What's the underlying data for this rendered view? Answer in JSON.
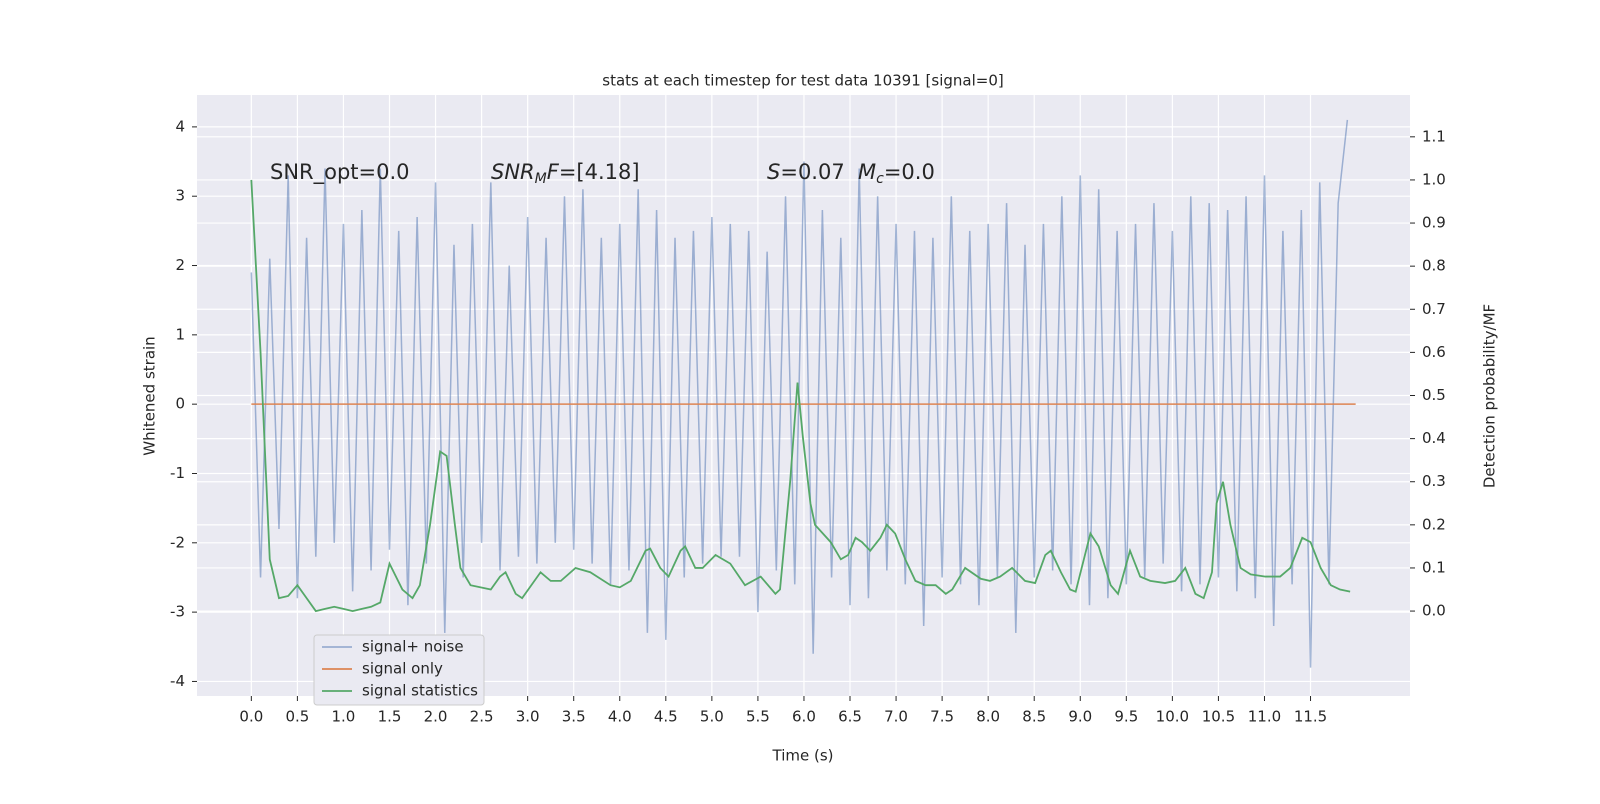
{
  "chart_data": {
    "type": "line",
    "title": "stats at each timestep for test data 10391 [signal=0]",
    "x_label": "Time (s)",
    "y_label": "Whitened strain",
    "y2_label": "Detection probability/MF",
    "xlim": [
      -0.59,
      12.58
    ],
    "ylim": [
      -4.21,
      4.46
    ],
    "y2lim": [
      -0.197,
      1.197
    ],
    "xticks": [
      {
        "value": 0,
        "label": "0.0"
      },
      0.5,
      {
        "value": 1,
        "label": "1.0"
      },
      1.5,
      {
        "value": 2,
        "label": "2.0"
      },
      2.5,
      {
        "value": 3,
        "label": "3.0"
      },
      3.5,
      {
        "value": 4,
        "label": "4.0"
      },
      4.5,
      {
        "value": 5,
        "label": "5.0"
      },
      5.5,
      {
        "value": 6,
        "label": "6.0"
      },
      6.5,
      {
        "value": 7,
        "label": "7.0"
      },
      7.5,
      {
        "value": 8,
        "label": "8.0"
      },
      8.5,
      {
        "value": 9,
        "label": "9.0"
      },
      9.5,
      {
        "value": 10,
        "label": "10.0"
      },
      10.5,
      {
        "value": 11,
        "label": "11.0"
      },
      11.5
    ],
    "yticks": [
      -4,
      -3,
      -2,
      -1,
      0,
      1,
      2,
      3,
      4
    ],
    "y2ticks": [
      {
        "value": 0,
        "label": "0.0"
      },
      0.1,
      0.2,
      0.3,
      0.4,
      0.5,
      0.6,
      0.7,
      0.8,
      0.9,
      {
        "value": 1,
        "label": "1.0"
      },
      1.1
    ],
    "grid": true,
    "background": "#eaeaf2",
    "annotations": [
      [
        [
          "SNR_opt=0.0",
          "normal"
        ]
      ],
      [
        [
          "SNR",
          "italic"
        ],
        [
          "M",
          "sub"
        ],
        [
          "F",
          "italic"
        ],
        [
          "=[4.18]",
          "normal"
        ]
      ],
      [
        [
          "S",
          "italic"
        ],
        [
          "=0.07",
          "normal"
        ]
      ],
      [
        [
          "M",
          "italic"
        ],
        [
          "c",
          "sub"
        ],
        [
          "=0.0",
          "normal"
        ]
      ]
    ],
    "series": [
      {
        "name": "signal+ noise",
        "color": "#4c72b0",
        "opacity": 0.5,
        "axis": "y",
        "x": [
          0,
          0.1,
          0.2,
          0.3,
          0.4,
          0.5,
          0.6,
          0.7,
          0.8,
          0.9,
          1,
          1.1,
          1.2,
          1.3,
          1.4,
          1.5,
          1.6,
          1.7,
          1.8,
          1.9,
          2,
          2.1,
          2.2,
          2.3,
          2.4,
          2.5,
          2.6,
          2.7,
          2.8,
          2.9,
          3,
          3.1,
          3.2,
          3.3,
          3.4,
          3.5,
          3.6,
          3.7,
          3.8,
          3.9,
          4,
          4.1,
          4.2,
          4.3,
          4.4,
          4.5,
          4.6,
          4.7,
          4.8,
          4.9,
          5,
          5.1,
          5.2,
          5.3,
          5.4,
          5.5,
          5.6,
          5.7,
          5.8,
          5.9,
          6,
          6.1,
          6.2,
          6.3,
          6.4,
          6.5,
          6.6,
          6.7,
          6.8,
          6.9,
          7,
          7.1,
          7.2,
          7.3,
          7.4,
          7.5,
          7.6,
          7.7,
          7.8,
          7.9,
          8,
          8.1,
          8.2,
          8.3,
          8.4,
          8.5,
          8.6,
          8.7,
          8.8,
          8.9,
          9,
          9.1,
          9.2,
          9.3,
          9.4,
          9.5,
          9.6,
          9.7,
          9.8,
          9.9,
          10,
          10.1,
          10.2,
          10.3,
          10.4,
          10.5,
          10.6,
          10.7,
          10.8,
          10.9,
          11,
          11.1,
          11.2,
          11.3,
          11.4,
          11.5,
          11.6,
          11.7,
          11.8,
          11.9
        ],
        "values": [
          1.9,
          -2.5,
          2.1,
          -1.8,
          3.3,
          -2.8,
          2.4,
          -2.2,
          3.4,
          -2.0,
          2.6,
          -2.7,
          2.8,
          -2.4,
          3.4,
          -2.1,
          2.5,
          -2.9,
          2.7,
          -2.3,
          3.2,
          -3.3,
          2.3,
          -2.5,
          2.6,
          -2.0,
          3.2,
          -2.4,
          2.0,
          -2.2,
          2.7,
          -2.3,
          2.4,
          -2.0,
          3.0,
          -2.1,
          3.1,
          -2.3,
          2.4,
          -2.6,
          2.6,
          -2.4,
          3.1,
          -3.3,
          2.8,
          -3.4,
          2.4,
          -2.5,
          2.5,
          -2.3,
          2.7,
          -2.2,
          2.6,
          -2.2,
          2.5,
          -3.0,
          2.2,
          -2.4,
          3.0,
          -2.6,
          3.5,
          -3.6,
          2.8,
          -2.5,
          2.4,
          -2.9,
          3.4,
          -2.8,
          3.0,
          -2.4,
          2.6,
          -2.6,
          2.5,
          -3.2,
          2.4,
          -2.5,
          3.0,
          -2.6,
          2.5,
          -2.9,
          2.6,
          -2.5,
          2.9,
          -3.3,
          2.3,
          -2.5,
          2.6,
          -2.4,
          3.0,
          -2.6,
          3.3,
          -2.9,
          3.1,
          -2.8,
          2.5,
          -2.6,
          2.6,
          -2.5,
          2.9,
          -2.3,
          2.5,
          -2.7,
          3.0,
          -2.6,
          2.9,
          -2.5,
          2.8,
          -2.7,
          3.0,
          -2.8,
          3.3,
          -3.2,
          2.5,
          -2.6,
          2.8,
          -3.8,
          3.2,
          -2.6,
          2.9,
          4.1
        ]
      },
      {
        "name": "signal only",
        "color": "#dd8452",
        "opacity": 1,
        "axis": "y",
        "x": [
          0,
          11.99
        ],
        "values": [
          0,
          0
        ]
      },
      {
        "name": "signal statistics",
        "color": "#55a868",
        "opacity": 1,
        "axis": "y2",
        "x": [
          0,
          0.1,
          0.2,
          0.3,
          0.4,
          0.5,
          0.6,
          0.7,
          0.8,
          0.9,
          1,
          1.1,
          1.2,
          1.3,
          1.4,
          1.5,
          1.64,
          1.75,
          1.83,
          1.94,
          2.05,
          2.12,
          2.21,
          2.27,
          2.38,
          2.6,
          2.7,
          2.76,
          2.87,
          2.94,
          3.14,
          3.25,
          3.36,
          3.52,
          3.68,
          3.9,
          4,
          4.12,
          4.28,
          4.33,
          4.44,
          4.53,
          4.66,
          4.71,
          4.82,
          4.9,
          5.04,
          5.2,
          5.36,
          5.53,
          5.69,
          5.74,
          5.85,
          5.93,
          5.99,
          6.07,
          6.12,
          6.29,
          6.4,
          6.48,
          6.56,
          6.63,
          6.72,
          6.83,
          6.9,
          6.99,
          7.1,
          7.21,
          7.32,
          7.43,
          7.54,
          7.61,
          7.75,
          7.92,
          8.02,
          8.13,
          8.26,
          8.4,
          8.51,
          8.62,
          8.68,
          8.79,
          8.89,
          8.95,
          9.11,
          9.2,
          9.33,
          9.41,
          9.54,
          9.65,
          9.76,
          9.92,
          10.03,
          10.14,
          10.25,
          10.34,
          10.43,
          10.48,
          10.55,
          10.63,
          10.74,
          10.85,
          11.01,
          11.17,
          11.28,
          11.41,
          11.5,
          11.61,
          11.72,
          11.82,
          11.93
        ],
        "values": [
          1.0,
          0.6,
          0.12,
          0.03,
          0.035,
          0.06,
          0.03,
          0.0,
          0.005,
          0.01,
          0.005,
          0.0,
          0.005,
          0.01,
          0.02,
          0.11,
          0.05,
          0.03,
          0.06,
          0.2,
          0.37,
          0.36,
          0.2,
          0.1,
          0.06,
          0.05,
          0.08,
          0.09,
          0.04,
          0.03,
          0.09,
          0.07,
          0.07,
          0.1,
          0.09,
          0.06,
          0.055,
          0.07,
          0.14,
          0.145,
          0.1,
          0.08,
          0.14,
          0.15,
          0.1,
          0.1,
          0.13,
          0.11,
          0.06,
          0.08,
          0.04,
          0.05,
          0.3,
          0.53,
          0.4,
          0.25,
          0.2,
          0.16,
          0.12,
          0.13,
          0.17,
          0.16,
          0.14,
          0.17,
          0.2,
          0.18,
          0.12,
          0.07,
          0.06,
          0.06,
          0.04,
          0.05,
          0.1,
          0.075,
          0.07,
          0.08,
          0.1,
          0.07,
          0.065,
          0.13,
          0.14,
          0.09,
          0.05,
          0.045,
          0.18,
          0.15,
          0.06,
          0.04,
          0.14,
          0.08,
          0.07,
          0.065,
          0.07,
          0.1,
          0.04,
          0.03,
          0.09,
          0.25,
          0.3,
          0.2,
          0.1,
          0.085,
          0.08,
          0.08,
          0.1,
          0.17,
          0.16,
          0.1,
          0.06,
          0.05,
          0.045
        ]
      }
    ]
  }
}
